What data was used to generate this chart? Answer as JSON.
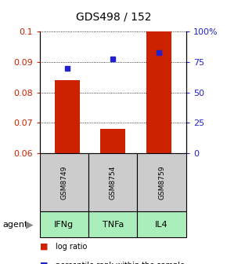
{
  "title": "GDS498 / 152",
  "samples": [
    "GSM8749",
    "GSM8754",
    "GSM8759"
  ],
  "agents": [
    "IFNg",
    "TNFa",
    "IL4"
  ],
  "bar_values": [
    0.084,
    0.068,
    0.1
  ],
  "bar_base": 0.06,
  "percentile_values": [
    0.088,
    0.091,
    0.093
  ],
  "ylim_left": [
    0.06,
    0.1
  ],
  "ylim_right": [
    0,
    100
  ],
  "yticks_left": [
    0.06,
    0.07,
    0.08,
    0.09,
    0.1
  ],
  "ytick_labels_left": [
    "0.06",
    "0.07",
    "0.08",
    "0.09",
    "0.1"
  ],
  "yticks_right": [
    0,
    25,
    50,
    75,
    100
  ],
  "ytick_labels_right": [
    "0",
    "25",
    "50",
    "75",
    "100%"
  ],
  "bar_color": "#cc2200",
  "dot_color": "#2222cc",
  "sample_box_color": "#cccccc",
  "agent_box_color_light": "#aaeebb",
  "agent_box_color_dark": "#66dd88",
  "left_tick_color": "#cc2200",
  "right_tick_color": "#2222cc",
  "bar_width": 0.55
}
